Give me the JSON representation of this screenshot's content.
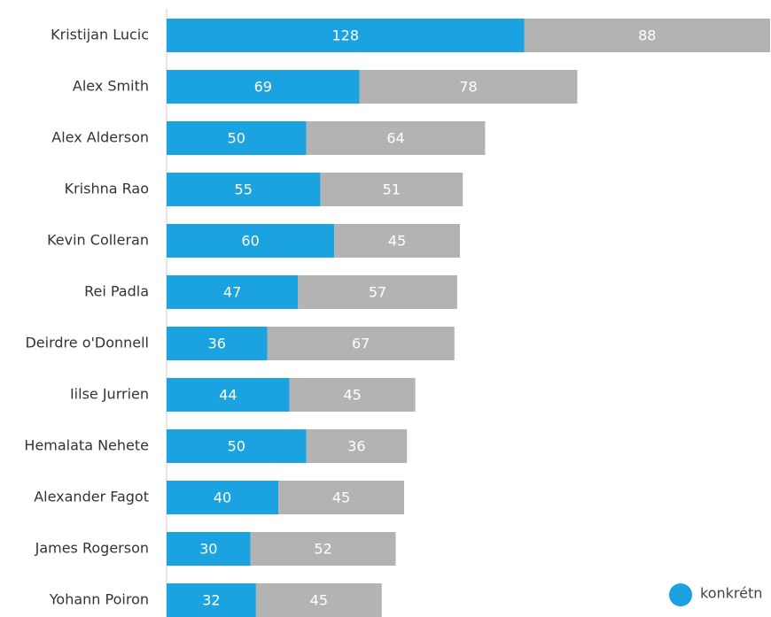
{
  "chart_data": {
    "type": "stacked-bar-horizontal",
    "categories": [
      "Kristijan Lucic",
      "Alex Smith",
      "Alex Alderson",
      "Krishna Rao",
      "Kevin Colleran",
      "Rei Padla",
      "Deirdre o'Donnell",
      "Iilse Jurrien",
      "Hemalata Nehete",
      "Alexander Fagot",
      "James Rogerson",
      "Yohann Poiron"
    ],
    "series": [
      {
        "name": "konkrétn",
        "color": "#1aa3e0",
        "values": [
          128,
          69,
          50,
          55,
          60,
          47,
          36,
          44,
          50,
          40,
          30,
          32
        ]
      },
      {
        "color": "#b3b3b3",
        "values": [
          88,
          78,
          64,
          51,
          45,
          57,
          67,
          45,
          36,
          45,
          52,
          45
        ]
      }
    ]
  }
}
